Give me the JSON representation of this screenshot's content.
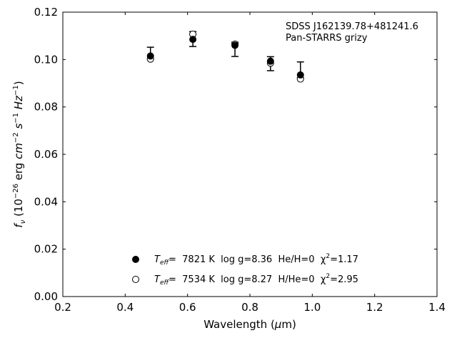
{
  "chart_data": {
    "type": "scatter",
    "xlabel": "Wavelength (μm)",
    "ylabel": "f_ν (10^-26 erg cm^-2 s^-1 Hz^-1)",
    "xlim": [
      0.2,
      1.4
    ],
    "ylim": [
      0.0,
      0.12
    ],
    "x_ticks": [
      0.2,
      0.4,
      0.6,
      0.8,
      1.0,
      1.2,
      1.4
    ],
    "x_tick_labels": [
      "0.2",
      "0.4",
      "0.6",
      "0.8",
      "1.0",
      "1.2",
      "1.4"
    ],
    "y_ticks": [
      0.0,
      0.02,
      0.04,
      0.06,
      0.08,
      0.1,
      0.12
    ],
    "y_tick_labels": [
      "0.00",
      "0.02",
      "0.04",
      "0.06",
      "0.08",
      "0.10",
      "0.12"
    ],
    "grid": false,
    "legend_position": "bottom-center",
    "annotations": [
      "SDSS J162139.78+481241.6",
      "Pan-STARRS grizy"
    ],
    "observed": {
      "x": [
        0.481,
        0.617,
        0.752,
        0.866,
        0.962
      ],
      "y": [
        0.1015,
        0.1085,
        0.106,
        0.0993,
        0.0935
      ],
      "err_low": [
        0.1003,
        0.1055,
        0.1013,
        0.0953,
        0.0923
      ],
      "err_high": [
        0.1052,
        0.1118,
        0.1073,
        0.1012,
        0.099
      ]
    },
    "series": [
      {
        "name": "T_eff= 7821 K log g=8.36 He/H=0 χ²=1.17",
        "marker": "filled-circle",
        "x": [
          0.481,
          0.617,
          0.752,
          0.866,
          0.962
        ],
        "y": [
          0.1015,
          0.1085,
          0.106,
          0.0993,
          0.0935
        ]
      },
      {
        "name": "T_eff= 7534 K log g=8.27 H/He=0 χ²=2.95",
        "marker": "open-circle",
        "x": [
          0.481,
          0.617,
          0.752,
          0.866,
          0.962
        ],
        "y": [
          0.1002,
          0.1107,
          0.1065,
          0.0985,
          0.0918
        ]
      }
    ],
    "legend": [
      {
        "prefix": "T",
        "sub": "eff",
        "text": "=  7821 K  log g=8.36  He/H=0  χ",
        "sup": "2",
        "suffix": "=1.17"
      },
      {
        "prefix": "T",
        "sub": "eff",
        "text": "=  7534 K  log g=8.27  H/He=0  χ",
        "sup": "2",
        "suffix": "=2.95"
      }
    ]
  }
}
